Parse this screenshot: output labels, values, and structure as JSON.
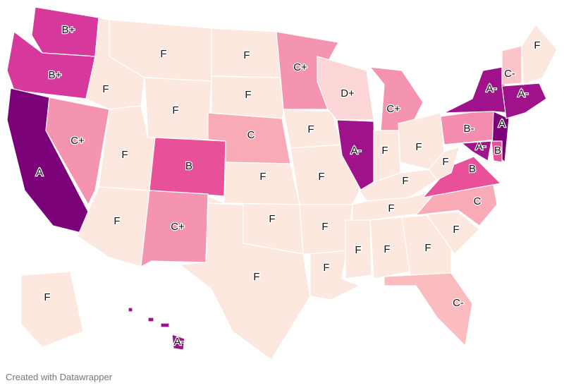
{
  "map": {
    "states": [
      {
        "grade": "B+",
        "color": "#d6389b"
      },
      {
        "grade": "B+",
        "color": "#d6389b"
      },
      {
        "grade": "A",
        "color": "#7a0177"
      },
      {
        "grade": "C+",
        "color": "#f594b1"
      },
      {
        "grade": "F",
        "color": "#fde8e0"
      },
      {
        "grade": "F",
        "color": "#fde8e0"
      },
      {
        "grade": "F",
        "color": "#fde8e0"
      },
      {
        "grade": "F",
        "color": "#fde8e0"
      },
      {
        "grade": "F",
        "color": "#fde8e0"
      },
      {
        "grade": "B",
        "color": "#e8509a"
      },
      {
        "grade": "C+",
        "color": "#f594b1"
      },
      {
        "grade": "F",
        "color": "#fde8e0"
      },
      {
        "grade": "F",
        "color": "#fde8e0"
      },
      {
        "grade": "C",
        "color": "#f8aab6"
      },
      {
        "grade": "F",
        "color": "#fde8e0"
      },
      {
        "grade": "F",
        "color": "#fde8e0"
      },
      {
        "grade": "F",
        "color": "#fde8e0"
      },
      {
        "grade": "C+",
        "color": "#f594b1"
      },
      {
        "grade": "F",
        "color": "#fde8e0"
      },
      {
        "grade": "F",
        "color": "#fde8e0"
      },
      {
        "grade": "F",
        "color": "#fde8e0"
      },
      {
        "grade": "F",
        "color": "#fde8e0"
      },
      {
        "grade": "D+",
        "color": "#fcd6d6"
      },
      {
        "grade": "A-",
        "color": "#a0128b"
      },
      {
        "grade": "C+",
        "color": "#f594b1"
      },
      {
        "grade": "F",
        "color": "#fde8e0"
      },
      {
        "grade": "F",
        "color": "#fde8e0"
      },
      {
        "grade": "F",
        "color": "#fde8e0"
      },
      {
        "grade": "F",
        "color": "#fde8e0"
      },
      {
        "grade": "F",
        "color": "#fde8e0"
      },
      {
        "grade": "F",
        "color": "#fde8e0"
      },
      {
        "grade": "F",
        "color": "#fde8e0"
      },
      {
        "grade": "C-",
        "color": "#fbbcc0"
      },
      {
        "grade": "F",
        "color": "#fde8e0"
      },
      {
        "grade": "C",
        "color": "#f8aab6"
      },
      {
        "grade": "B",
        "color": "#e8509a"
      },
      {
        "grade": "F",
        "color": "#fde8e0"
      },
      {
        "grade": "B-",
        "color": "#f48cb0"
      },
      {
        "grade": "A-",
        "color": "#a0128b"
      },
      {
        "grade": "A-",
        "color": "#a0128b"
      },
      {
        "grade": "A",
        "color": "#7a0177"
      },
      {
        "grade": "B",
        "color": "#e8509a"
      },
      {
        "grade": "A-",
        "color": "#a0128b"
      },
      {
        "grade": "C-",
        "color": "#fbc4c8"
      },
      {
        "grade": "F",
        "color": "#fde8e0"
      },
      {
        "grade": "F",
        "color": "#fde8e0"
      },
      {
        "grade": "A-",
        "color": "#a0128b"
      }
    ],
    "footer": "Created with Datawrapper"
  }
}
